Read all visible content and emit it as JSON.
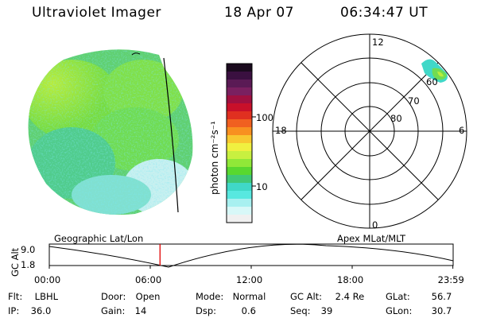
{
  "header": {
    "instrument": "Ultraviolet Imager",
    "date": "18 Apr 07",
    "time": "06:34:47 UT"
  },
  "colorbar": {
    "label": "photon cm⁻²s⁻¹",
    "ticks": [
      "100",
      "10"
    ],
    "colors": [
      "#1a0a1e",
      "#3a1040",
      "#5a1a55",
      "#7a2060",
      "#a01040",
      "#c8102a",
      "#e03020",
      "#f06020",
      "#f89020",
      "#f8c830",
      "#f0f040",
      "#c8f040",
      "#90e838",
      "#58d830",
      "#40c878",
      "#40d8c8",
      "#58e8e0",
      "#a8f0f0",
      "#d8f8f8",
      "#f0f0f0"
    ]
  },
  "polar": {
    "labels": {
      "top": "12",
      "left": "18",
      "right": "6",
      "bottom": "0",
      "rings": [
        "60",
        "70",
        "80"
      ]
    }
  },
  "timeline": {
    "left_label": "Geographic Lat/Lon",
    "right_label": "Apex MLat/MLT",
    "yaxis_title": "GC Alt",
    "y_ticks": [
      "9.0",
      "1.8"
    ],
    "x_ticks": [
      "00:00",
      "06:00",
      "12:00",
      "18:00",
      "23:59"
    ],
    "current_marker_hour": 6.58
  },
  "info": {
    "filter": {
      "key": "Flt:",
      "value": "LBHL"
    },
    "ip": {
      "key": "IP:",
      "value": "36.0"
    },
    "door": {
      "key": "Door:",
      "value": "Open"
    },
    "gain": {
      "key": "Gain:",
      "value": "14"
    },
    "mode": {
      "key": "Mode:",
      "value": "Normal"
    },
    "dsp": {
      "key": "Dsp:",
      "value": "0.6"
    },
    "gcalt": {
      "key": "GC Alt:",
      "value": "2.4 Re"
    },
    "seq": {
      "key": "Seq:",
      "value": "39"
    },
    "glat": {
      "key": "GLat:",
      "value": "56.7"
    },
    "glon": {
      "key": "GLon:",
      "value": "30.7"
    }
  }
}
